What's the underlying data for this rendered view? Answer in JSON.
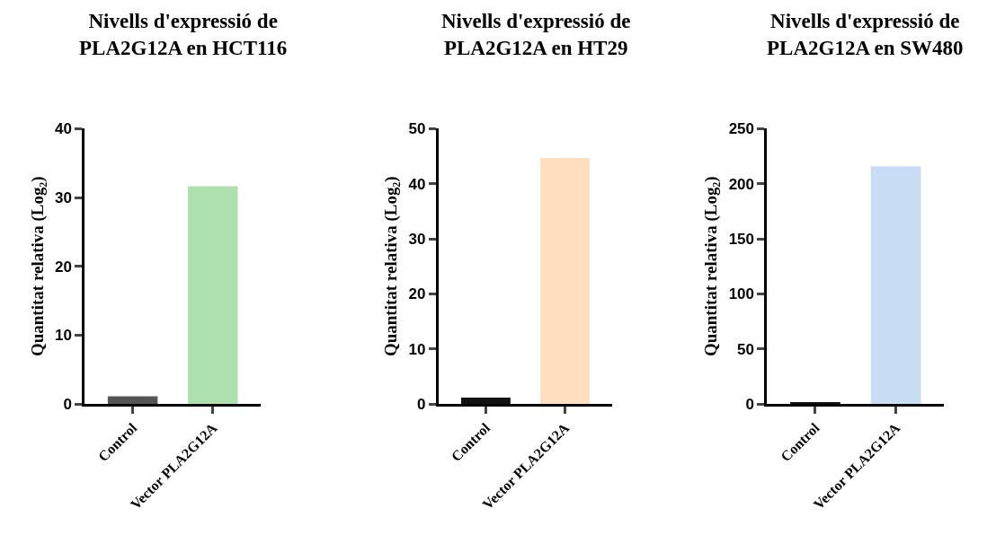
{
  "chart_data": [
    {
      "type": "bar",
      "title": "Nivells d'expressió de PLA2G12A en HCT116",
      "ylabel": "Quantitat relativa (Log₂)",
      "categories": [
        "Control",
        "Vector PLA2G12A"
      ],
      "values": [
        1,
        31.5
      ],
      "colors": [
        "#555555",
        "#aee0ae"
      ],
      "ylim": [
        0,
        40
      ],
      "yticks": [
        0,
        10,
        20,
        30,
        40
      ],
      "grid": false,
      "legend": false
    },
    {
      "type": "bar",
      "title": "Nivells d'expressió de PLA2G12A en HT29",
      "ylabel": "Quantitat relativa (Log₂)",
      "categories": [
        "Control",
        "Vector PLA2G12A"
      ],
      "values": [
        1,
        44.5
      ],
      "colors": [
        "#111111",
        "#ffdfc0"
      ],
      "ylim": [
        0,
        50
      ],
      "yticks": [
        0,
        10,
        20,
        30,
        40,
        50
      ],
      "grid": false,
      "legend": false
    },
    {
      "type": "bar",
      "title": "Nivells d'expressió de PLA2G12A en SW480",
      "ylabel": "Quantitat relativa (Log₂)",
      "categories": [
        "Control",
        "Vector PLA2G12A"
      ],
      "values": [
        1,
        215
      ],
      "colors": [
        "#111111",
        "#c9ddf5"
      ],
      "ylim": [
        0,
        250
      ],
      "yticks": [
        0,
        50,
        100,
        150,
        200,
        250
      ],
      "grid": false,
      "legend": false
    }
  ]
}
